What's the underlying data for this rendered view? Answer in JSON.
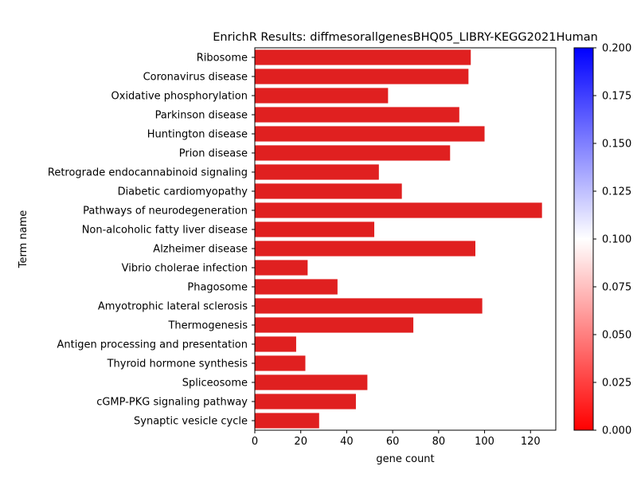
{
  "chart_data": {
    "type": "bar",
    "orientation": "horizontal",
    "title": "EnrichR Results: diffmesorallgenesBHQ05_LIBRY-KEGG2021Human",
    "xlabel": "gene count",
    "ylabel": "Term name",
    "xlim": [
      0,
      131
    ],
    "xticks": [
      0,
      20,
      40,
      60,
      80,
      100,
      120
    ],
    "bar_color": "#e02020",
    "categories": [
      "Ribosome",
      "Coronavirus disease",
      "Oxidative phosphorylation",
      "Parkinson disease",
      "Huntington disease",
      "Prion disease",
      "Retrograde endocannabinoid signaling",
      "Diabetic cardiomyopathy",
      "Pathways of neurodegeneration",
      "Non-alcoholic fatty liver disease",
      "Alzheimer disease",
      "Vibrio cholerae infection",
      "Phagosome",
      "Amyotrophic lateral sclerosis",
      "Thermogenesis",
      "Antigen processing and presentation",
      "Thyroid hormone synthesis",
      "Spliceosome",
      "cGMP-PKG signaling pathway",
      "Synaptic vesicle cycle"
    ],
    "values": [
      94,
      93,
      58,
      89,
      100,
      85,
      54,
      64,
      125,
      52,
      96,
      23,
      36,
      99,
      69,
      18,
      22,
      49,
      44,
      28
    ],
    "colorbar": {
      "range": [
        0.0,
        0.2
      ],
      "ticks": [
        "0.000",
        "0.025",
        "0.050",
        "0.075",
        "0.100",
        "0.125",
        "0.150",
        "0.175",
        "0.200"
      ],
      "colors": [
        "#ff0000",
        "#ffffff",
        "#0000ff"
      ]
    },
    "grid": false,
    "legend": "none"
  }
}
